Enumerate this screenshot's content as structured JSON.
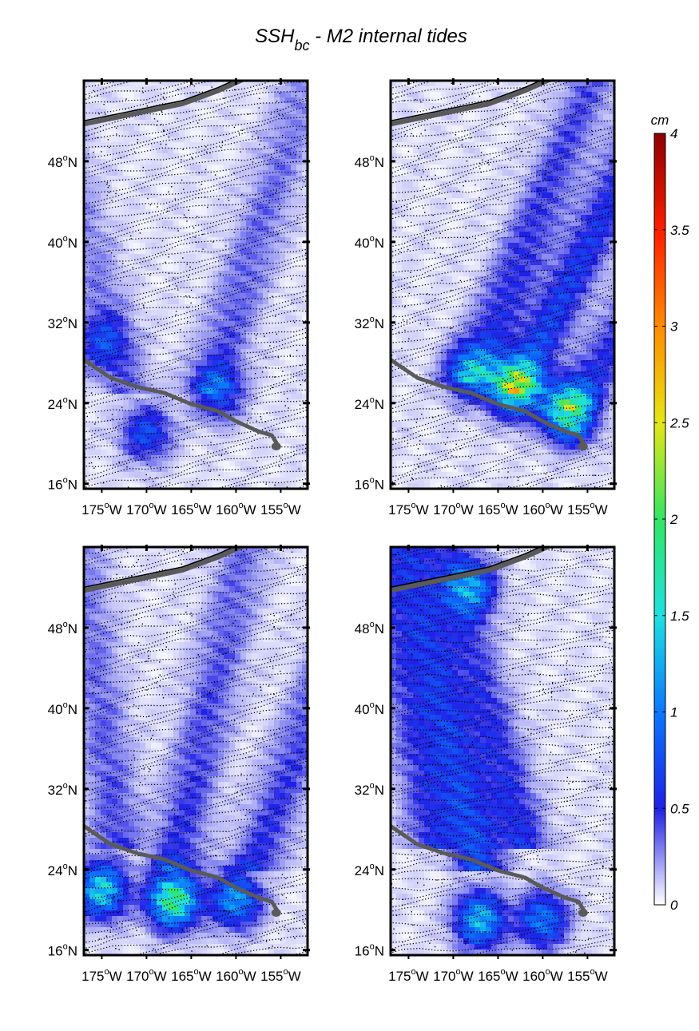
{
  "figure": {
    "title_main": "SSH",
    "title_subscript": "bc",
    "title_rest": " - M2 internal tides"
  },
  "chart_data": [
    {
      "type": "heatmap",
      "panel": "top-left",
      "quantity": "M2 internal tide SSH amplitude",
      "units": "cm",
      "xlim": [
        -177,
        -152
      ],
      "ylim": [
        15.5,
        56
      ],
      "x_ticks": [
        -175,
        -170,
        -165,
        -160,
        -155
      ],
      "y_ticks": [
        16,
        24,
        32,
        40,
        48
      ],
      "max_amplitude_cm": 1.0,
      "hotspots": [
        {
          "lon": -162,
          "lat": 25,
          "amp_cm": 0.9
        },
        {
          "lon": -170,
          "lat": 21,
          "amp_cm": 0.9
        },
        {
          "lon": -175,
          "lat": 30,
          "amp_cm": 0.7
        }
      ],
      "beams": [
        {
          "lon": -163,
          "lat": 25,
          "dx": 0.35,
          "dy": 1,
          "amp_cm": 0.4
        },
        {
          "lon": -172,
          "lat": 25,
          "dx": -0.3,
          "dy": 1,
          "amp_cm": 0.3
        }
      ],
      "phase_lines_angle": -0.3
    },
    {
      "type": "heatmap",
      "panel": "top-right",
      "quantity": "M2 internal tide SSH amplitude",
      "units": "cm",
      "xlim": [
        -177,
        -152
      ],
      "ylim": [
        15.5,
        56
      ],
      "x_ticks": [
        -175,
        -170,
        -165,
        -160,
        -155
      ],
      "y_ticks": [
        16,
        24,
        32,
        40,
        48
      ],
      "max_amplitude_cm": 2.3,
      "hotspots": [
        {
          "lon": -163,
          "lat": 25.5,
          "amp_cm": 2.3
        },
        {
          "lon": -157,
          "lat": 23,
          "amp_cm": 2.3
        },
        {
          "lon": -168,
          "lat": 27,
          "amp_cm": 1.2
        }
      ],
      "beams": [
        {
          "lon": -163,
          "lat": 25,
          "dx": 0.55,
          "dy": 1,
          "amp_cm": 0.8
        },
        {
          "lon": -168,
          "lat": 26,
          "dx": 0.45,
          "dy": 1,
          "amp_cm": 0.6
        },
        {
          "lon": -157,
          "lat": 23,
          "dx": 0.7,
          "dy": 1,
          "amp_cm": 0.6
        }
      ],
      "phase_lines_angle": -0.35
    },
    {
      "type": "heatmap",
      "panel": "bottom-left",
      "quantity": "M2 internal tide SSH amplitude",
      "units": "cm",
      "xlim": [
        -177,
        -152
      ],
      "ylim": [
        15.5,
        56
      ],
      "x_ticks": [
        -175,
        -170,
        -165,
        -160,
        -155
      ],
      "y_ticks": [
        16,
        24,
        32,
        40,
        48
      ],
      "max_amplitude_cm": 2.4,
      "hotspots": [
        {
          "lon": -167,
          "lat": 21,
          "amp_cm": 2.4
        },
        {
          "lon": -175,
          "lat": 22,
          "amp_cm": 1.8
        },
        {
          "lon": -160,
          "lat": 21,
          "amp_cm": 1.4
        }
      ],
      "beams": [
        {
          "lon": -167,
          "lat": 24,
          "dx": 0.25,
          "dy": 1,
          "amp_cm": 0.5
        },
        {
          "lon": -158,
          "lat": 24,
          "dx": 0.4,
          "dy": 1,
          "amp_cm": 0.5
        },
        {
          "lon": -173,
          "lat": 26,
          "dx": -0.15,
          "dy": 1,
          "amp_cm": 0.4
        }
      ],
      "phase_lines_angle": -0.3
    },
    {
      "type": "heatmap",
      "panel": "bottom-right",
      "quantity": "M2 internal tide SSH amplitude",
      "units": "cm",
      "xlim": [
        -177,
        -152
      ],
      "ylim": [
        15.5,
        56
      ],
      "x_ticks": [
        -175,
        -170,
        -165,
        -160,
        -155
      ],
      "y_ticks": [
        16,
        24,
        32,
        40,
        48
      ],
      "max_amplitude_cm": 1.6,
      "hotspots": [
        {
          "lon": -168,
          "lat": 52,
          "amp_cm": 1.3
        },
        {
          "lon": -167,
          "lat": 19,
          "amp_cm": 1.6
        },
        {
          "lon": -160,
          "lat": 19,
          "amp_cm": 1.2
        }
      ],
      "beams": [
        {
          "lon": -167,
          "lat": 24,
          "dx": -0.25,
          "dy": 1,
          "amp_cm": 0.8
        },
        {
          "lon": -162,
          "lat": 26,
          "dx": -0.3,
          "dy": 1,
          "amp_cm": 0.6
        },
        {
          "lon": -172,
          "lat": 26,
          "dx": -0.2,
          "dy": 1,
          "amp_cm": 0.5
        }
      ],
      "phase_lines_angle": -0.15
    }
  ],
  "axes": {
    "x_tick_labels": [
      "175",
      "170",
      "165",
      "160",
      "155"
    ],
    "x_hemisphere": "W",
    "y_tick_labels": [
      "16",
      "24",
      "32",
      "40",
      "48"
    ],
    "y_hemisphere": "N",
    "degree_symbol": "o"
  },
  "colorbar": {
    "label": "cm",
    "range": [
      0,
      4
    ],
    "ticks": [
      0,
      0.5,
      1,
      1.5,
      2,
      2.5,
      3,
      3.5,
      4
    ],
    "tick_labels": [
      "0",
      "0.5",
      "1",
      "1.5",
      "2",
      "2.5",
      "3",
      "3.5",
      "4"
    ],
    "colormap": [
      {
        "v": 0.0,
        "c": "#ffffff"
      },
      {
        "v": 0.5,
        "c": "#2020e6"
      },
      {
        "v": 1.0,
        "c": "#0a78ff"
      },
      {
        "v": 1.5,
        "c": "#1ee1e1"
      },
      {
        "v": 2.0,
        "c": "#32e664"
      },
      {
        "v": 2.5,
        "c": "#e6e614"
      },
      {
        "v": 3.0,
        "c": "#ff8c00"
      },
      {
        "v": 3.5,
        "c": "#ff1e00"
      },
      {
        "v": 4.0,
        "c": "#8c0000"
      }
    ]
  },
  "colors": {
    "land": "#5a5a5a",
    "coast": "#000000",
    "phase_lines": "#000000"
  }
}
